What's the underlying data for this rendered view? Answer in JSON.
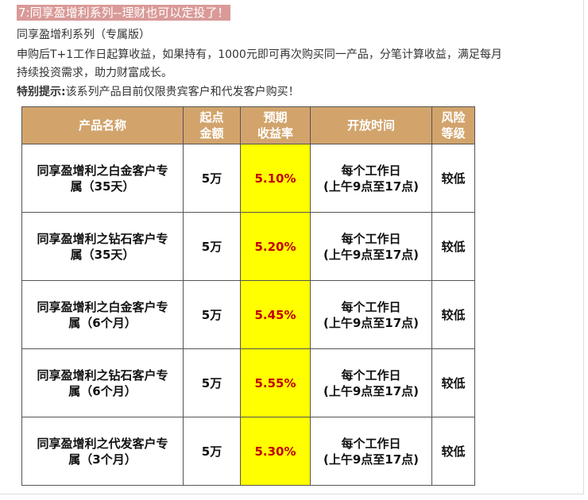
{
  "title": "7:同享盈增利系列--理财也可以定投了！",
  "subtitle": "同享盈增利系列（专属版）",
  "desc_line1": "申购后T+1工作日起算收益，如果持有，1000元即可再次购买同一产品，分笔计算收益，满足每月",
  "desc_line2": "持续投资需求，助力财富成长。",
  "notice_label": "特别提示:",
  "notice_text": "该系列产品目前仅限贵宾客户和代发客户购买！",
  "table": {
    "headers": [
      "产品名称",
      "起点金额",
      "预期收益率",
      "开放时间",
      "风险等级"
    ],
    "header_lines": [
      [
        "产品名称"
      ],
      [
        "起点",
        "金额"
      ],
      [
        "预期",
        "收益率"
      ],
      [
        "开放时间"
      ],
      [
        "风险",
        "等级"
      ]
    ],
    "rows": [
      {
        "name": [
          "同享盈增利之白金客户专",
          "属（35天）"
        ],
        "min": "5万",
        "rate": "5.10%",
        "time": [
          "每个工作日",
          "(上午9点至17点)"
        ],
        "risk": "较低"
      },
      {
        "name": [
          "同享盈增利之钻石客户专",
          "属（35天）"
        ],
        "min": "5万",
        "rate": "5.20%",
        "time": [
          "每个工作日",
          "(上午9点至17点)"
        ],
        "risk": "较低"
      },
      {
        "name": [
          "同享盈增利之白金客户专",
          "属（6个月）"
        ],
        "min": "5万",
        "rate": "5.45%",
        "time": [
          "每个工作日",
          "(上午9点至17点)"
        ],
        "risk": "较低"
      },
      {
        "name": [
          "同享盈增利之钻石客户专",
          "属（6个月）"
        ],
        "min": "5万",
        "rate": "5.55%",
        "time": [
          "每个工作日",
          "(上午9点至17点)"
        ],
        "risk": "较低"
      },
      {
        "name": [
          "同享盈增利之代发客户专",
          "属（3个月）"
        ],
        "min": "5万",
        "rate": "5.30%",
        "time": [
          "每个工作日",
          "(上午9点至17点)"
        ],
        "risk": "较低"
      }
    ]
  },
  "colors": {
    "title_bg": "#d99a98",
    "header_bg": "#d2a46c",
    "rate_bg": "#ffff00",
    "rate_text": "#c00000"
  }
}
